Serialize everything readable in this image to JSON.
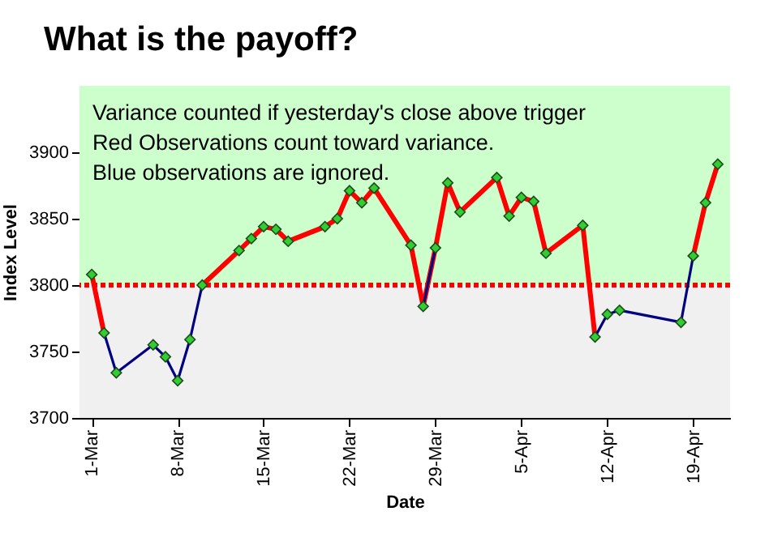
{
  "chart_data": {
    "type": "line",
    "title": "What is the payoff?",
    "xlabel": "Date",
    "ylabel": "Index Level",
    "annotations": [
      "Variance counted if yesterday's close above trigger",
      "Red Observations count toward variance.",
      "Blue observations are ignored."
    ],
    "x": [
      "--03-01",
      "--03-02",
      "--03-03",
      "--03-06",
      "--03-07",
      "--03-08",
      "--03-09",
      "--03-10",
      "--03-13",
      "--03-14",
      "--03-15",
      "--03-16",
      "--03-17",
      "--03-20",
      "--03-21",
      "--03-22",
      "--03-23",
      "--03-24",
      "--03-27",
      "--03-28",
      "--03-29",
      "--03-30",
      "--03-31",
      "--04-03",
      "--04-04",
      "--04-05",
      "--04-06",
      "--04-07",
      "--04-10",
      "--04-11",
      "--04-12",
      "--04-13",
      "--04-18",
      "--04-19",
      "--04-20",
      "--04-21"
    ],
    "series": [
      {
        "type": "line",
        "color": "#ff0000",
        "values": [
          3808,
          3764,
          null,
          null,
          null,
          null,
          null,
          3800,
          3826,
          3835,
          3844,
          3842,
          3833,
          3844,
          3850,
          3871,
          3862,
          3873,
          3830,
          3784,
          3828,
          3877,
          3855,
          3881,
          3852,
          3866,
          3863,
          3824,
          3845,
          3761,
          null,
          null,
          null,
          3822,
          3862,
          3891
        ]
      },
      {
        "type": "line",
        "color": "#000080",
        "values": [
          null,
          3764,
          3734,
          3755,
          3746,
          3728,
          3759,
          3800,
          null,
          null,
          null,
          null,
          null,
          null,
          null,
          null,
          null,
          null,
          null,
          3784,
          3828,
          null,
          null,
          null,
          null,
          null,
          null,
          null,
          null,
          3761,
          3778,
          3781,
          3772,
          3822,
          null,
          null
        ]
      },
      {
        "type": "scatter",
        "color": "#33cc33",
        "marker": "diamond",
        "values": [
          3808,
          3764,
          3734,
          3755,
          3746,
          3728,
          3759,
          3800,
          3826,
          3835,
          3844,
          3842,
          3833,
          3844,
          3850,
          3871,
          3862,
          3873,
          3830,
          3784,
          3828,
          3877,
          3855,
          3881,
          3852,
          3866,
          3863,
          3824,
          3845,
          3761,
          3778,
          3781,
          3772,
          3822,
          3862,
          3891
        ]
      }
    ],
    "xlim": [
      "--02-28",
      "--04-22"
    ],
    "xticks": [
      {
        "value": "--03-01",
        "label": "1-Mar"
      },
      {
        "value": "--03-08",
        "label": "8-Mar"
      },
      {
        "value": "--03-15",
        "label": "15-Mar"
      },
      {
        "value": "--03-22",
        "label": "22-Mar"
      },
      {
        "value": "--03-29",
        "label": "29-Mar"
      },
      {
        "value": "--04-05",
        "label": "5-Apr"
      },
      {
        "value": "--04-12",
        "label": "12-Apr"
      },
      {
        "value": "--04-19",
        "label": "19-Apr"
      }
    ],
    "ylim": [
      3700,
      3950
    ],
    "yticks": [
      3700,
      3750,
      3800,
      3850,
      3900
    ],
    "ref_lines": [
      {
        "axis": "y",
        "value": 3800,
        "color": "#ff0000",
        "line_style": "dotted"
      }
    ],
    "bands": [
      {
        "axis": "y",
        "from": 3800,
        "to": 3950,
        "color": "#ccffcc"
      },
      {
        "axis": "y",
        "from": 3700,
        "to": 3800,
        "color": "#f0f0f0"
      }
    ],
    "grid": false
  }
}
